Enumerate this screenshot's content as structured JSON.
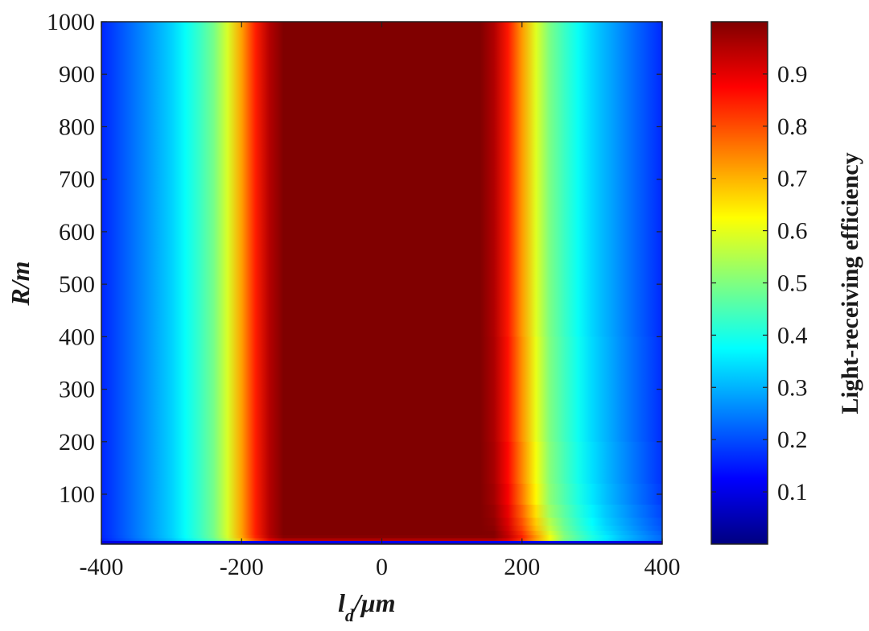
{
  "chart_data": {
    "type": "heatmap",
    "title": "",
    "xlabel": {
      "main": "l",
      "sub": "d",
      "rest": "/μm"
    },
    "ylabel": "R/m",
    "xlim": [
      -400,
      400
    ],
    "ylim": [
      5,
      1000
    ],
    "xticks": [
      -400,
      -200,
      0,
      200,
      400
    ],
    "xtick_labels": [
      "-400",
      "-200",
      "0",
      "200",
      "400"
    ],
    "yticks": [
      100,
      200,
      300,
      400,
      500,
      600,
      700,
      800,
      900,
      1000
    ],
    "ytick_labels": [
      "100",
      "200",
      "300",
      "400",
      "500",
      "600",
      "700",
      "800",
      "900",
      "1000"
    ],
    "colormap": "jet",
    "colorbar": {
      "label": "Light-receiving efficiency",
      "range": [
        0,
        1
      ],
      "ticks": [
        0.1,
        0.2,
        0.3,
        0.4,
        0.5,
        0.6,
        0.7,
        0.8,
        0.9
      ],
      "tick_labels": [
        "0.1",
        "0.2",
        "0.3",
        "0.4",
        "0.5",
        "0.6",
        "0.7",
        "0.8",
        "0.9"
      ]
    },
    "efficiency_profile_vs_ld": {
      "ld_um": [
        -400,
        -340,
        -300,
        -260,
        -230,
        -215,
        -195,
        -175,
        -160,
        -145,
        0,
        145,
        160,
        175,
        195,
        215,
        230,
        260,
        300,
        340,
        400
      ],
      "efficiency": [
        0.16,
        0.26,
        0.33,
        0.43,
        0.52,
        0.62,
        0.75,
        0.88,
        0.95,
        1.0,
        1.0,
        1.0,
        0.95,
        0.88,
        0.75,
        0.62,
        0.52,
        0.43,
        0.33,
        0.26,
        0.16
      ]
    },
    "low_R_behavior": {
      "R_m": [
        5,
        10,
        30,
        60,
        100,
        200,
        1000
      ],
      "x_shift_um": [
        0,
        50,
        30,
        20,
        12,
        5,
        0
      ],
      "note": ""
    }
  }
}
